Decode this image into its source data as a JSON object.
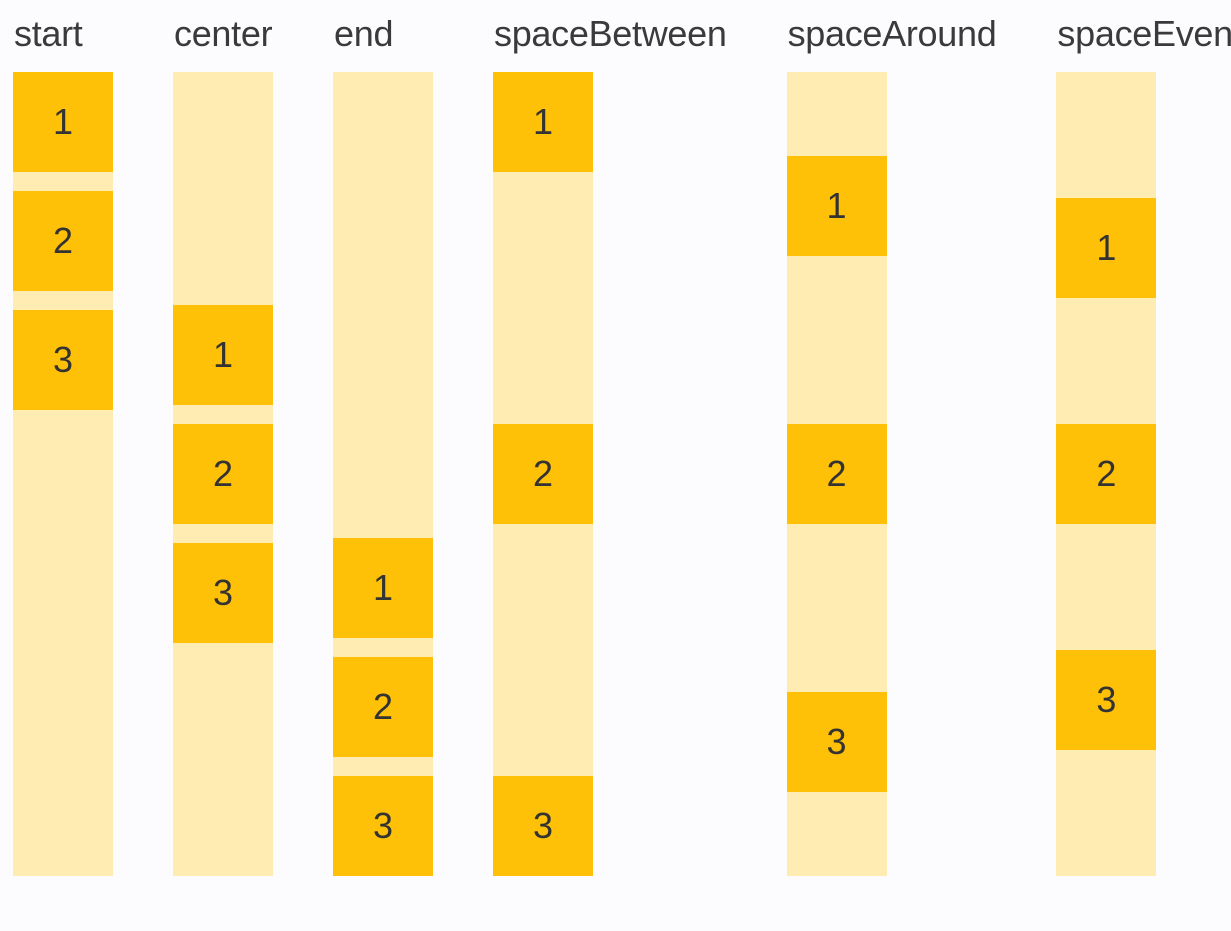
{
  "page": {
    "description": "justify-content demo figure",
    "background": "#fcfcff"
  },
  "colors": {
    "box": "#ffc107",
    "track": "#ffecb3",
    "label_text": "#3a3a3a",
    "digit_text": "#333333",
    "background": "#fcfcff"
  },
  "columns": [
    {
      "label": "start",
      "justify": "flex-start",
      "gapped": true,
      "items": [
        "1",
        "2",
        "3"
      ]
    },
    {
      "label": "center",
      "justify": "center",
      "gapped": true,
      "items": [
        "1",
        "2",
        "3"
      ]
    },
    {
      "label": "end",
      "justify": "flex-end",
      "gapped": true,
      "items": [
        "1",
        "2",
        "3"
      ]
    },
    {
      "label": "spaceBetween",
      "justify": "space-between",
      "gapped": false,
      "items": [
        "1",
        "2",
        "3"
      ]
    },
    {
      "label": "spaceAround",
      "justify": "space-around",
      "gapped": false,
      "items": [
        "1",
        "2",
        "3"
      ]
    },
    {
      "label": "spaceEvenly",
      "justify": "space-evenly",
      "gapped": false,
      "items": [
        "1",
        "2",
        "3"
      ]
    }
  ]
}
